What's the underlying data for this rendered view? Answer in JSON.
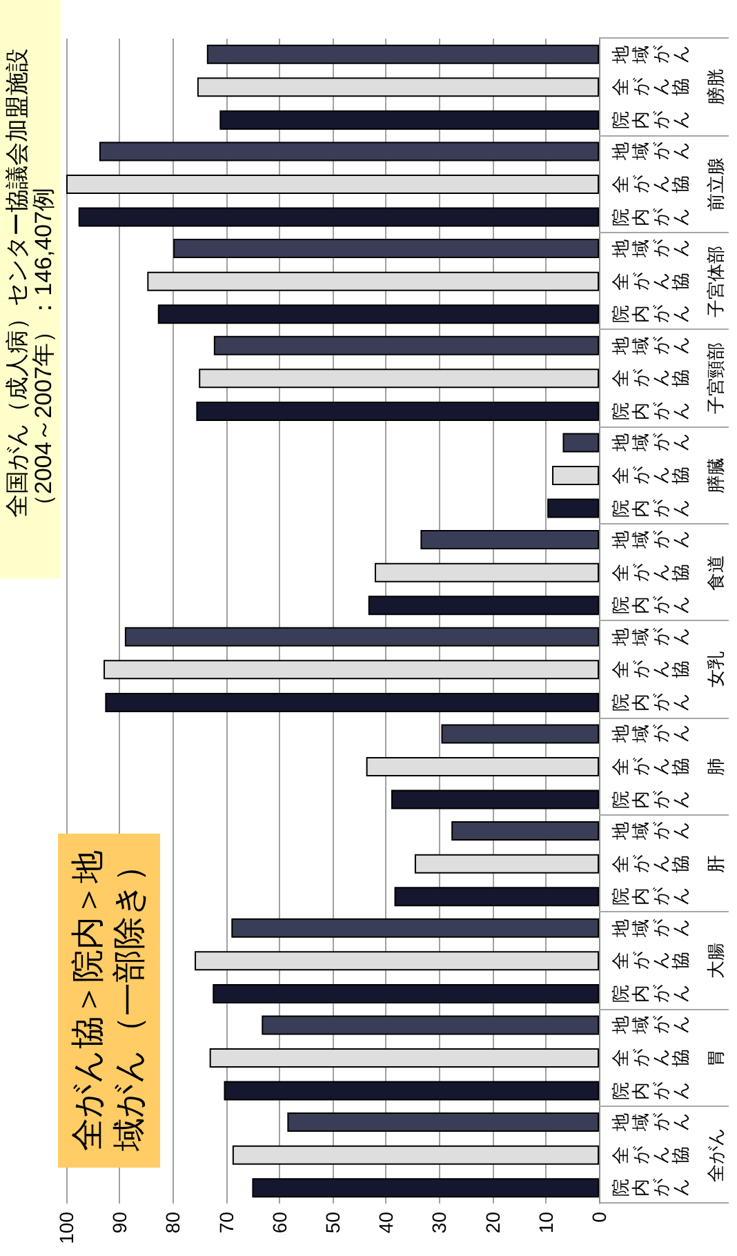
{
  "chart_data": {
    "type": "bar",
    "orientation": "horizontal",
    "categories": [
      "膀胱",
      "前立腺",
      "子宮体部",
      "子宮頸部",
      "膵臓",
      "食道",
      "女乳",
      "肺",
      "肝",
      "大腸",
      "胃",
      "全がん"
    ],
    "series": [
      {
        "name": "院内がん",
        "color": "#14172e",
        "values": [
          71.2,
          97.7,
          82.8,
          75.6,
          9.7,
          43.3,
          92.7,
          39.0,
          38.4,
          72.5,
          70.4,
          65.1
        ]
      },
      {
        "name": "全がん協",
        "color": "#dedede",
        "values": [
          75.4,
          100.0,
          84.8,
          75.1,
          8.8,
          42.1,
          93.0,
          43.7,
          34.6,
          75.9,
          73.1,
          68.8
        ]
      },
      {
        "name": "地域がん",
        "color": "#3a3d56",
        "values": [
          73.6,
          93.8,
          79.9,
          72.3,
          6.8,
          33.5,
          89.0,
          29.6,
          27.7,
          69.0,
          63.3,
          58.5
        ]
      }
    ],
    "xlim": [
      100,
      0
    ],
    "xticks": [
      100,
      90,
      80,
      70,
      60,
      50,
      40,
      30,
      20,
      10,
      0
    ],
    "grid": "x",
    "annotations": [
      "全がん協＞院内＞地域がん（一部除き）",
      "全国がん（成人病）センター協議会加盟施設（2004～2007年）：146,407例"
    ]
  }
}
